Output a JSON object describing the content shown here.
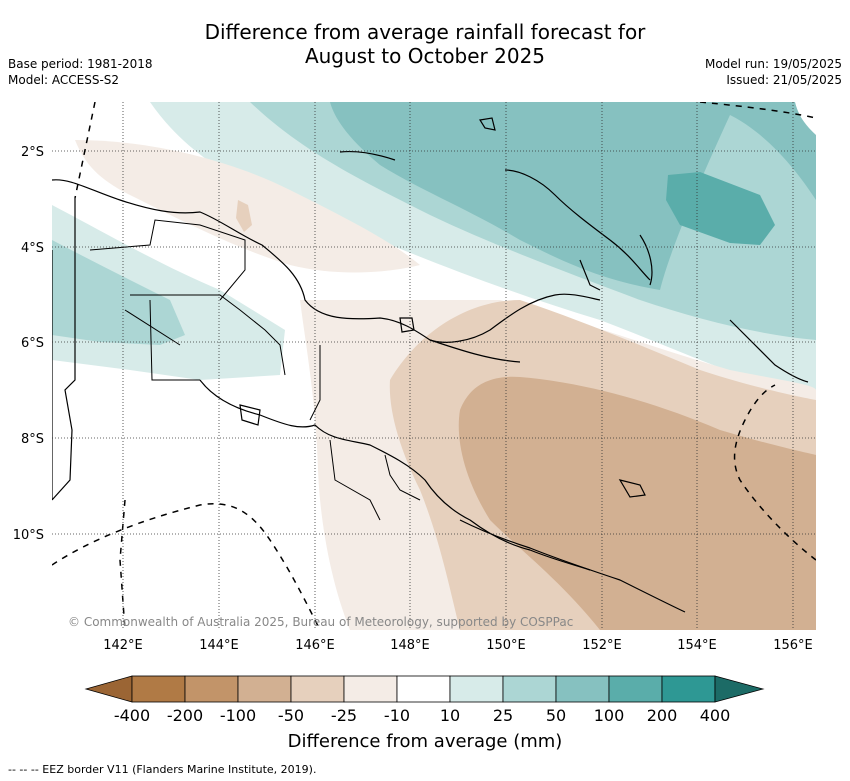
{
  "title_line1": "Difference from average rainfall forecast for",
  "title_line2": "August to October 2025",
  "meta_left": {
    "base_period": "Base period: 1981-2018",
    "model": "Model: ACCESS-S2"
  },
  "meta_right": {
    "model_run": "Model run: 19/05/2025",
    "issued": "Issued: 21/05/2025"
  },
  "map": {
    "lat_labels": [
      "2°S",
      "4°S",
      "6°S",
      "8°S",
      "10°S"
    ],
    "lon_labels": [
      "142°E",
      "144°E",
      "146°E",
      "148°E",
      "150°E",
      "152°E",
      "154°E",
      "156°E"
    ],
    "copyright": "© Commonwealth of Australia 2025, Bureau of Meteorology, supported by COSPPac"
  },
  "colorbar": {
    "ticks": [
      "-400",
      "-200",
      "-100",
      "-50",
      "-25",
      "-10",
      "10",
      "25",
      "50",
      "100",
      "200",
      "400"
    ],
    "colors": [
      "#9b6534",
      "#b07a45",
      "#c29469",
      "#d2b092",
      "#e6d0bd",
      "#f4ece6",
      "#ffffff",
      "#d7ebe9",
      "#acd6d4",
      "#86c1c0",
      "#5aadaa",
      "#2e9894",
      "#1c6b66"
    ],
    "label": "Difference from average (mm)"
  },
  "legend_note": "--  --  -- EEZ border V11 (Flanders Marine Institute, 2019)."
}
